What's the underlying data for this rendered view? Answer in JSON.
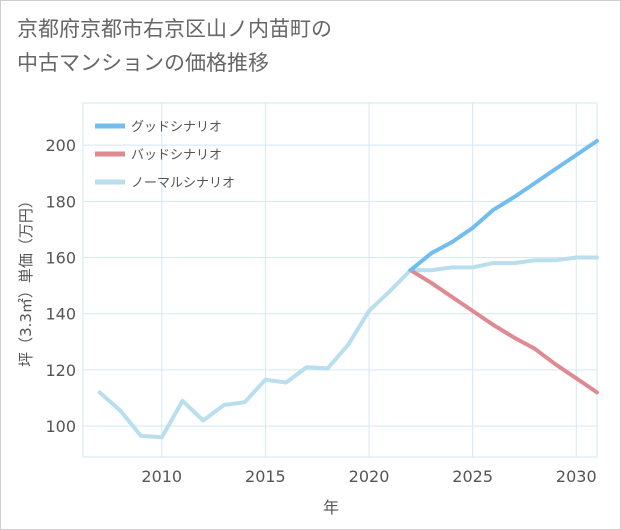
{
  "header": {
    "title_line1": "京都府京都市右京区山ノ内苗町の",
    "title_line2": "中古マンションの価格推移"
  },
  "colors": {
    "good": "#71bdf0",
    "bad": "#df8a93",
    "normal": "#b9deee",
    "grid": "#d3e8f2",
    "text": "#555555"
  },
  "chart_data": {
    "type": "line",
    "title": "京都府京都市右京区山ノ内苗町の中古マンションの価格推移",
    "xlabel": "年",
    "ylabel": "坪（3.3㎡）単価（万円）",
    "xlim": [
      2006.2,
      2031.0
    ],
    "ylim": [
      89,
      215
    ],
    "xticks": [
      2010,
      2015,
      2020,
      2025,
      2030
    ],
    "yticks": [
      100,
      120,
      140,
      160,
      180,
      200
    ],
    "legend_position": "top-left",
    "series": [
      {
        "name": "グッドシナリオ",
        "key": "good",
        "x": [
          2022,
          2023,
          2024,
          2025,
          2026,
          2027,
          2028,
          2029,
          2030,
          2031
        ],
        "y": [
          155.5,
          161.5,
          165.5,
          170.5,
          177,
          181.5,
          186.5,
          191.5,
          196.5,
          201.5
        ]
      },
      {
        "name": "バッドシナリオ",
        "key": "bad",
        "x": [
          2022,
          2023,
          2024,
          2025,
          2026,
          2027,
          2028,
          2029,
          2030,
          2031
        ],
        "y": [
          155.5,
          151,
          146,
          141,
          136,
          131.5,
          127.5,
          122,
          117,
          112
        ]
      },
      {
        "name": "ノーマルシナリオ",
        "key": "normal",
        "x": [
          2007,
          2008,
          2009,
          2010,
          2011,
          2012,
          2013,
          2014,
          2015,
          2016,
          2017,
          2018,
          2019,
          2020,
          2021,
          2022,
          2023,
          2024,
          2025,
          2026,
          2027,
          2028,
          2029,
          2030,
          2031
        ],
        "y": [
          112,
          105.5,
          96.5,
          96,
          109,
          102,
          107.5,
          108.5,
          116.5,
          115.5,
          121,
          120.5,
          129,
          141,
          148,
          155.5,
          155.5,
          156.5,
          156.5,
          158,
          158,
          159,
          159,
          160,
          160
        ]
      }
    ]
  }
}
